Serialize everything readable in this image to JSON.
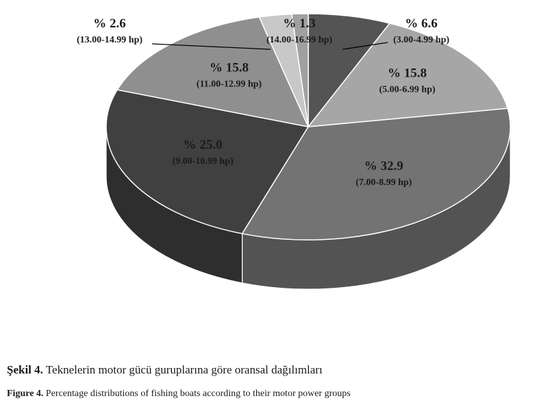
{
  "chart_data": {
    "type": "pie",
    "style": "3d",
    "series": [
      {
        "range": "(3.00-4.99 hp)",
        "percent_label": "% 6.6",
        "value": 6.6,
        "color": "#545454"
      },
      {
        "range": "(5.00-6.99 hp)",
        "percent_label": "% 15.8",
        "value": 15.8,
        "color": "#a6a6a6"
      },
      {
        "range": "(7.00-8.99 hp)",
        "percent_label": "% 32.9",
        "value": 32.9,
        "color": "#737373"
      },
      {
        "range": "(9.00-10.99 hp)",
        "percent_label": "% 25.0",
        "value": 25.0,
        "color": "#404040"
      },
      {
        "range": "(11.00-12.99 hp)",
        "percent_label": "% 15.8",
        "value": 15.8,
        "color": "#8f8f8f"
      },
      {
        "range": "(13.00-14.99 hp)",
        "percent_label": "% 2.6",
        "value": 2.6,
        "color": "#c8c8c8"
      },
      {
        "range": "(14.00-16.99 hp)",
        "percent_label": "% 1.3",
        "value": 1.3,
        "color": "#a0a0a0"
      }
    ]
  },
  "caption_tr": {
    "bold": "Şekil 4.",
    "text": " Teknelerin motor gücü guruplarına göre oransal dağılımları"
  },
  "caption_en": {
    "bold": "Figure 4.",
    "text": " Percentage distributions of fishing boats according to their motor power groups"
  }
}
